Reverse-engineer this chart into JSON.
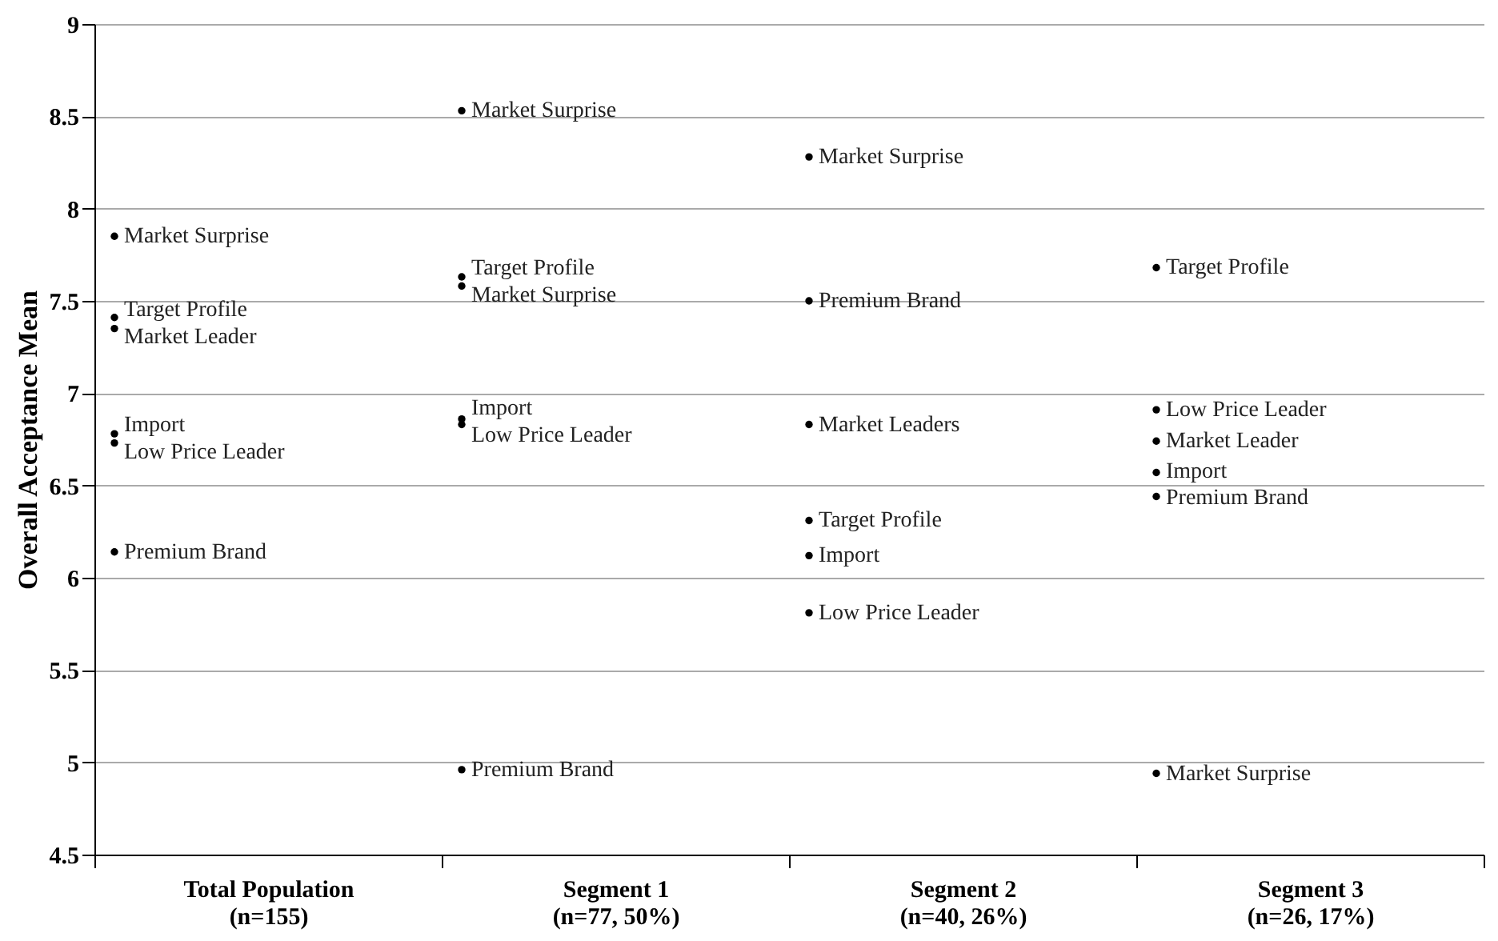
{
  "chart_data": {
    "type": "scatter",
    "ylabel": "Overall Acceptance Mean",
    "categories": [
      "Total Population\n(n=155)",
      "Segment 1\n(n=77, 50%)",
      "Segment 2\n(n=40, 26%)",
      "Segment 3\n(n=26, 17%)"
    ],
    "series": [
      {
        "color": "#000000",
        "x": [
          "Total Population\n(n=155)",
          "Total Population\n(n=155)",
          "Total Population\n(n=155)",
          "Total Population\n(n=155)",
          "Total Population\n(n=155)",
          "Total Population\n(n=155)",
          "Segment 1\n(n=77, 50%)",
          "Segment 1\n(n=77, 50%)",
          "Segment 1\n(n=77, 50%)",
          "Segment 1\n(n=77, 50%)",
          "Segment 1\n(n=77, 50%)",
          "Segment 1\n(n=77, 50%)",
          "Segment 2\n(n=40, 26%)",
          "Segment 2\n(n=40, 26%)",
          "Segment 2\n(n=40, 26%)",
          "Segment 2\n(n=40, 26%)",
          "Segment 2\n(n=40, 26%)",
          "Segment 2\n(n=40, 26%)",
          "Segment 3\n(n=26, 17%)",
          "Segment 3\n(n=26, 17%)",
          "Segment 3\n(n=26, 17%)",
          "Segment 3\n(n=26, 17%)",
          "Segment 3\n(n=26, 17%)",
          "Segment 3\n(n=26, 17%)"
        ],
        "values": [
          7.85,
          7.41,
          7.35,
          6.78,
          6.73,
          6.14,
          8.53,
          7.63,
          7.58,
          6.86,
          6.83,
          4.96,
          8.28,
          7.5,
          6.83,
          6.31,
          6.12,
          5.81,
          7.68,
          6.91,
          6.74,
          6.57,
          6.44,
          4.94
        ],
        "value_labels": [
          "Market Surprise",
          "Target Profile",
          "Market Leader",
          "Import",
          "Low Price Leader",
          "Premium Brand",
          "Market Surprise",
          "Target Profile",
          "Market Surprise",
          "Import",
          "Low Price Leader",
          "Premium Brand",
          "Market Surprise",
          "Premium Brand",
          "Market Leaders",
          "Target Profile",
          "Import",
          "Low Price Leader",
          "Target Profile",
          "Low Price Leader",
          "Market Leader",
          "Import",
          "Premium Brand",
          "Market Surprise"
        ]
      }
    ],
    "ylim": [
      4.5,
      9
    ],
    "yticks": [
      4.5,
      5,
      5.5,
      6,
      6.5,
      7,
      7.5,
      8,
      8.5,
      9
    ],
    "grid": "y",
    "marker": "circle",
    "legend": false
  }
}
